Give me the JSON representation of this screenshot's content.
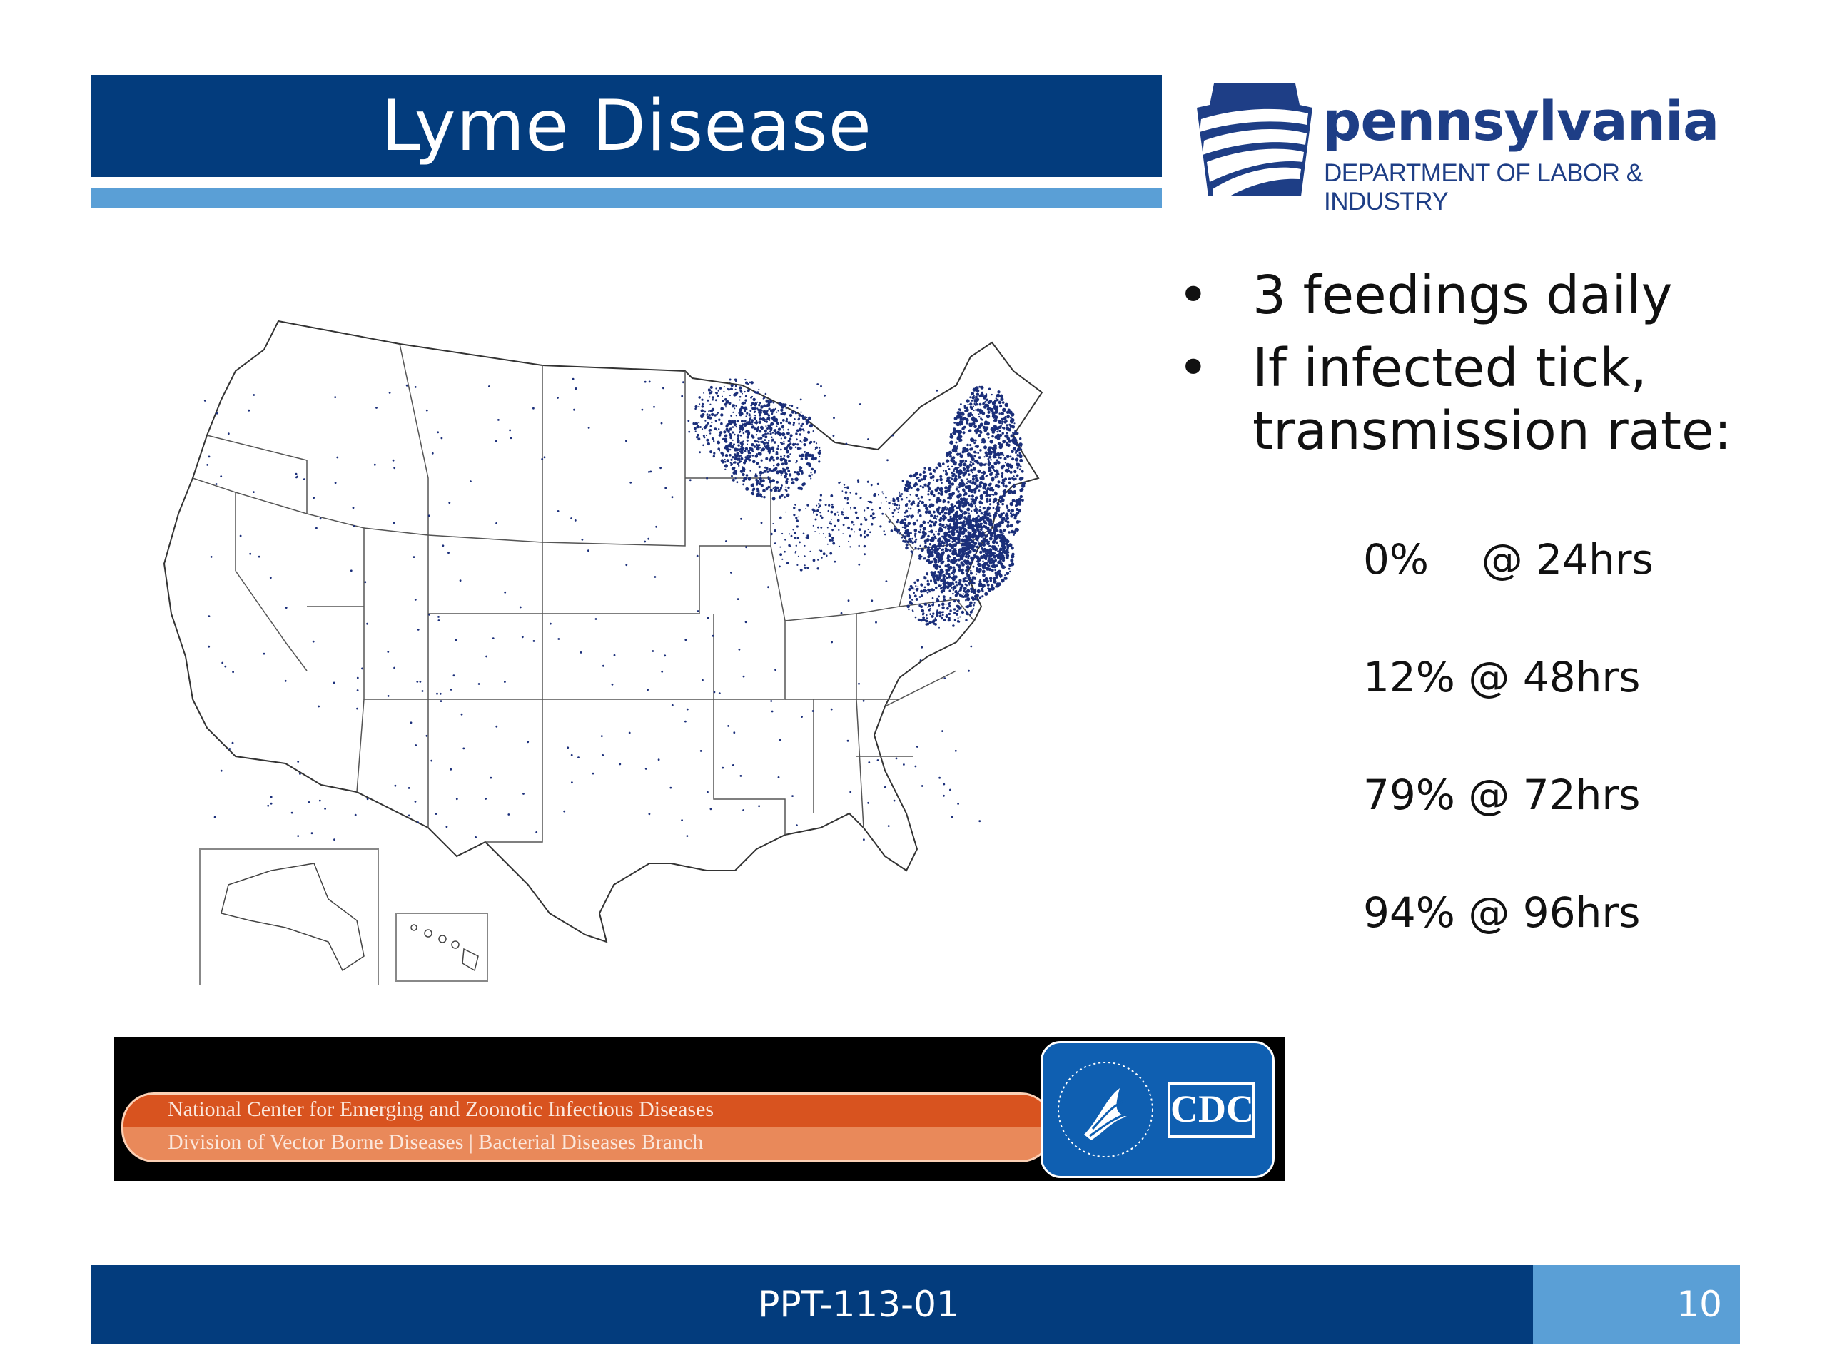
{
  "slide": {
    "title": "Lyme Disease",
    "logo": {
      "name": "pennsylvania",
      "subtitle": "DEPARTMENT OF LABOR & INDUSTRY"
    },
    "bullets": [
      {
        "text": "3 feedings daily"
      },
      {
        "text": "If infected tick,\ntransmission rate:"
      }
    ],
    "rates": [
      {
        "text": "0%    @ 24hrs"
      },
      {
        "text": "12% @ 48hrs"
      },
      {
        "text": "79% @ 72hrs"
      },
      {
        "text": "94% @ 96hrs"
      }
    ],
    "cdc_banner": {
      "line1": "National Center for Emerging and Zoonotic Infectious Diseases",
      "line2": "Division of Vector Borne Diseases | Bacterial Diseases Branch",
      "badge": "CDC"
    },
    "footer": {
      "code": "PPT-113-01",
      "page": "10"
    },
    "colors": {
      "navy": "#033c7d",
      "light_blue": "#5a9fd6",
      "map_dots": "#1b2f7a"
    }
  }
}
